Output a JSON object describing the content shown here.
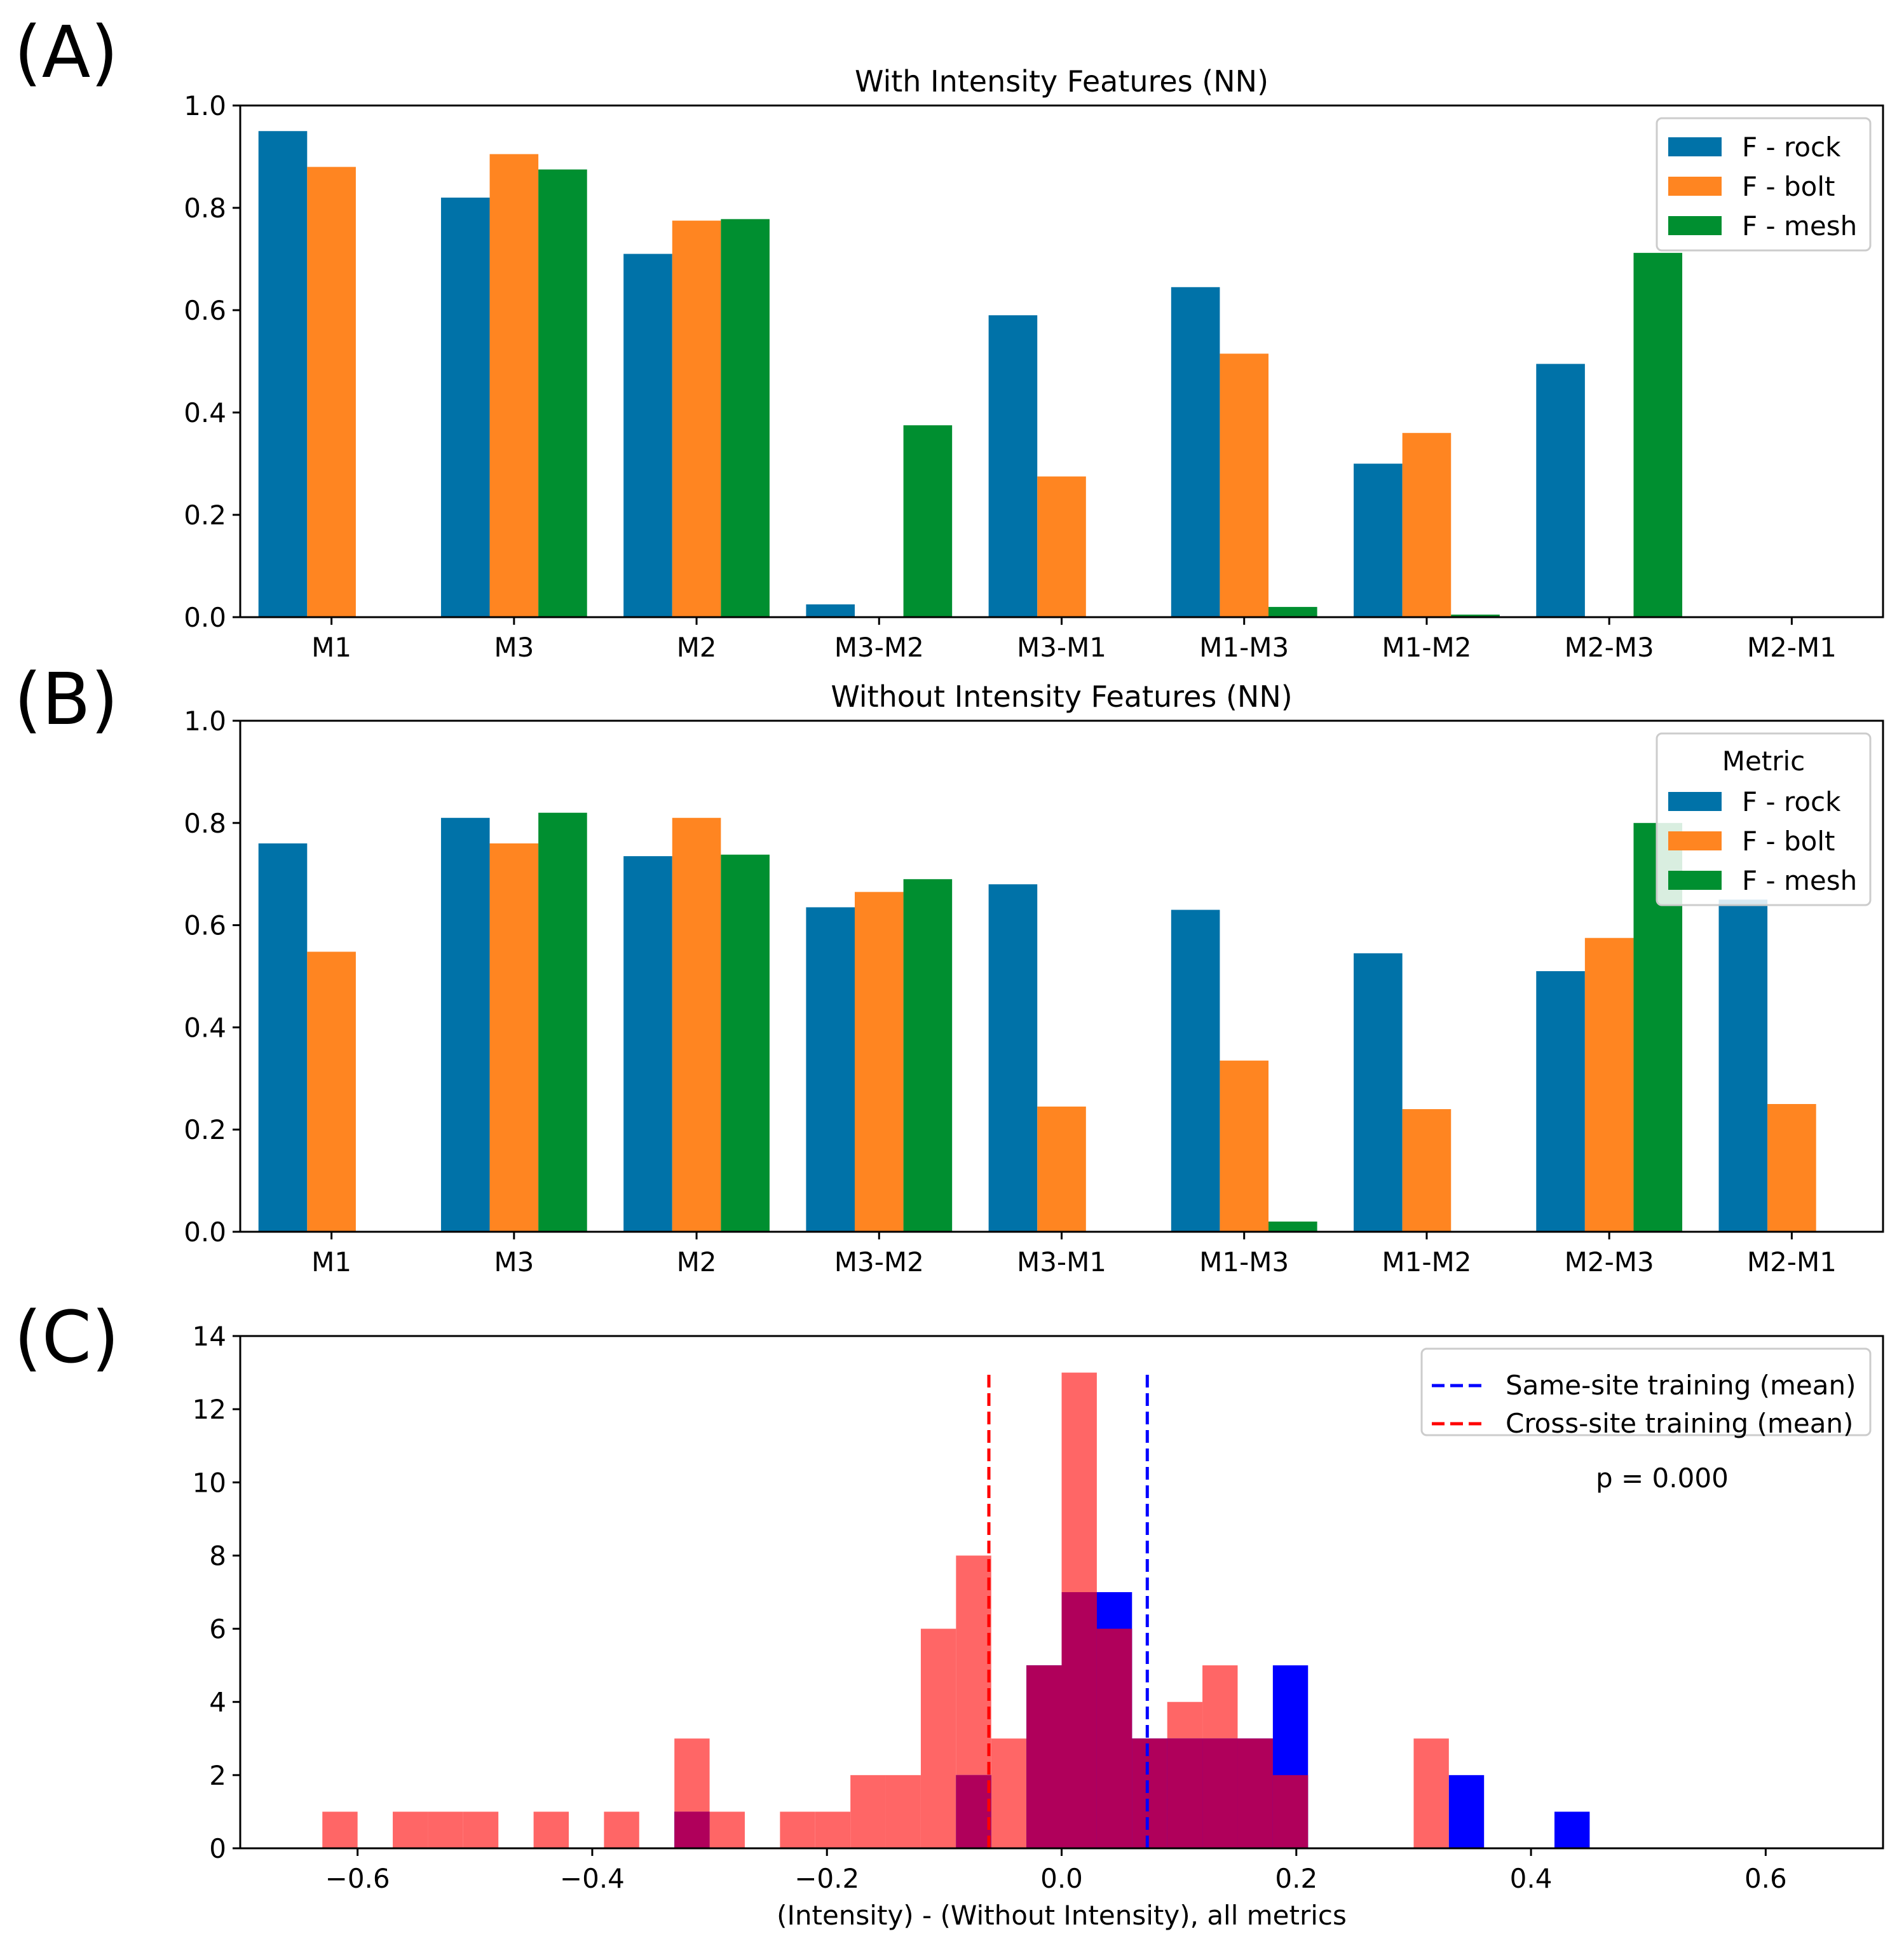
{
  "panel_labels": [
    "(A)",
    "(B)",
    "(C)"
  ],
  "colors": {
    "rock": "#0072a8",
    "bolt": "#ff8521",
    "mesh": "#008f30",
    "same": "#0000ff",
    "cross": "#ff0000",
    "cross_fill": "#ff6666",
    "overlap": "#b0005b"
  },
  "chart_data": [
    {
      "type": "bar",
      "title": "With Intensity Features (NN)",
      "categories": [
        "M1",
        "M3",
        "M2",
        "M3-M2",
        "M3-M1",
        "M1-M3",
        "M1-M2",
        "M2-M3",
        "M2-M1"
      ],
      "ylim": [
        0,
        1.0
      ],
      "yticks": [
        "0.0",
        "0.2",
        "0.4",
        "0.6",
        "0.8",
        "1.0"
      ],
      "legend_title": "",
      "legend_position": "top-right",
      "series": [
        {
          "name": "F - rock",
          "values": [
            0.95,
            0.82,
            0.71,
            0.025,
            0.59,
            0.645,
            0.3,
            0.495,
            0
          ]
        },
        {
          "name": "F - bolt",
          "values": [
            0.88,
            0.905,
            0.775,
            0,
            0.275,
            0.515,
            0.36,
            0,
            0
          ]
        },
        {
          "name": "F - mesh",
          "values": [
            0,
            0.875,
            0.778,
            0.375,
            0,
            0.02,
            0.005,
            0.712,
            0
          ]
        }
      ]
    },
    {
      "type": "bar",
      "title": "Without Intensity Features (NN)",
      "categories": [
        "M1",
        "M3",
        "M2",
        "M3-M2",
        "M3-M1",
        "M1-M3",
        "M1-M2",
        "M2-M3",
        "M2-M1"
      ],
      "ylim": [
        0,
        1.0
      ],
      "yticks": [
        "0.0",
        "0.2",
        "0.4",
        "0.6",
        "0.8",
        "1.0"
      ],
      "legend_title": "Metric",
      "legend_position": "top-right",
      "series": [
        {
          "name": "F - rock",
          "values": [
            0.76,
            0.81,
            0.735,
            0.635,
            0.68,
            0.63,
            0.545,
            0.51,
            0.65
          ]
        },
        {
          "name": "F - bolt",
          "values": [
            0.548,
            0.76,
            0.81,
            0.665,
            0.245,
            0.335,
            0.24,
            0.575,
            0.25
          ]
        },
        {
          "name": "F - mesh",
          "values": [
            0,
            0.82,
            0.738,
            0.69,
            0,
            0.02,
            0,
            0.8,
            0
          ]
        }
      ]
    },
    {
      "type": "histogram",
      "title": "",
      "xlabel": "(Intensity) - (Without Intensity), all metrics",
      "xlim": [
        -0.7,
        0.7
      ],
      "ylim": [
        0,
        14
      ],
      "xticks": [
        {
          "value": -0.6,
          "label": "−0.6"
        },
        {
          "value": -0.4,
          "label": "−0.4"
        },
        {
          "value": -0.2,
          "label": "−0.2"
        },
        {
          "value": 0.0,
          "label": "0.0"
        },
        {
          "value": 0.2,
          "label": "0.2"
        },
        {
          "value": 0.4,
          "label": "0.4"
        },
        {
          "value": 0.6,
          "label": "0.6"
        }
      ],
      "yticks": [
        0,
        2,
        4,
        6,
        8,
        10,
        12,
        14
      ],
      "bin_width": 0.03,
      "cross_site_bins": [
        {
          "x0": -0.63,
          "count": 1
        },
        {
          "x0": -0.57,
          "count": 1
        },
        {
          "x0": -0.54,
          "count": 1
        },
        {
          "x0": -0.51,
          "count": 1
        },
        {
          "x0": -0.45,
          "count": 1
        },
        {
          "x0": -0.39,
          "count": 1
        },
        {
          "x0": -0.33,
          "count": 3
        },
        {
          "x0": -0.3,
          "count": 1
        },
        {
          "x0": -0.24,
          "count": 1
        },
        {
          "x0": -0.21,
          "count": 1
        },
        {
          "x0": -0.18,
          "count": 2
        },
        {
          "x0": -0.15,
          "count": 2
        },
        {
          "x0": -0.12,
          "count": 6
        },
        {
          "x0": -0.09,
          "count": 8
        },
        {
          "x0": -0.06,
          "count": 3
        },
        {
          "x0": -0.03,
          "count": 5
        },
        {
          "x0": 0.0,
          "count": 13
        },
        {
          "x0": 0.03,
          "count": 6
        },
        {
          "x0": 0.06,
          "count": 3
        },
        {
          "x0": 0.09,
          "count": 4
        },
        {
          "x0": 0.12,
          "count": 5
        },
        {
          "x0": 0.15,
          "count": 3
        },
        {
          "x0": 0.18,
          "count": 2
        },
        {
          "x0": 0.3,
          "count": 3
        }
      ],
      "same_site_bins": [
        {
          "x0": -0.33,
          "count": 1
        },
        {
          "x0": -0.09,
          "count": 2
        },
        {
          "x0": -0.03,
          "count": 5
        },
        {
          "x0": 0.0,
          "count": 7
        },
        {
          "x0": 0.03,
          "count": 7
        },
        {
          "x0": 0.06,
          "count": 3
        },
        {
          "x0": 0.09,
          "count": 3
        },
        {
          "x0": 0.12,
          "count": 3
        },
        {
          "x0": 0.15,
          "count": 3
        },
        {
          "x0": 0.18,
          "count": 5
        },
        {
          "x0": 0.33,
          "count": 2
        },
        {
          "x0": 0.42,
          "count": 1
        }
      ],
      "same_site_mean": 0.073,
      "cross_site_mean": -0.062,
      "mean_line_top": 13,
      "legend_position": "top-right",
      "legend": [
        "Same-site training (mean)",
        "Cross-site training (mean)"
      ],
      "annotation": "p = 0.000"
    }
  ]
}
